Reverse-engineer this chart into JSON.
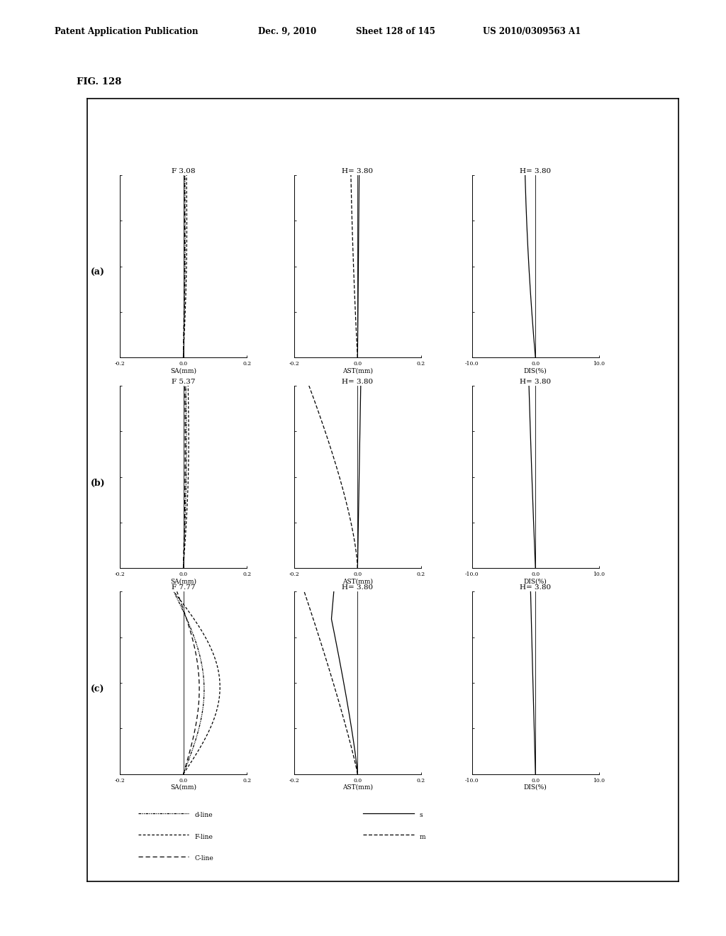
{
  "header_left": "Patent Application Publication",
  "header_date": "Dec. 9, 2010",
  "header_sheet": "Sheet 128 of 145",
  "header_patent": "US 2010/0309563 A1",
  "fig_label": "FIG. 128",
  "rows": [
    {
      "label": "(a)",
      "sa_title": "F 3.08",
      "ast_title": "H= 3.80",
      "dis_title": "H= 3.80"
    },
    {
      "label": "(b)",
      "sa_title": "F 5.37",
      "ast_title": "H= 3.80",
      "dis_title": "H= 3.80"
    },
    {
      "label": "(c)",
      "sa_title": "F 7.77",
      "ast_title": "H= 3.80",
      "dis_title": "H= 3.80"
    }
  ],
  "legend_left": [
    {
      "linestyle": "dotted_dense",
      "label": "d-line"
    },
    {
      "linestyle": "dashed_fine",
      "label": "F-line"
    },
    {
      "linestyle": "dash_spaced",
      "label": "C-line"
    }
  ],
  "legend_right": [
    {
      "linestyle": "solid",
      "label": "s"
    },
    {
      "linestyle": "dash_dot",
      "label": "m"
    }
  ]
}
